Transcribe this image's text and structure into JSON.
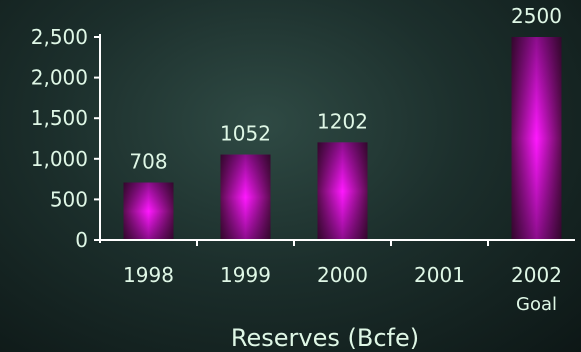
{
  "chart_data": {
    "type": "bar",
    "categories": [
      "1998",
      "1999",
      "2000",
      "2001",
      "2002"
    ],
    "category_sublabels": [
      "",
      "",
      "",
      "",
      "Goal"
    ],
    "values": [
      708,
      1052,
      1202,
      null,
      2500
    ],
    "data_labels": [
      "708",
      "1052",
      "1202",
      "",
      "2500"
    ],
    "xlabel": "Reserves (Bcfe)",
    "ylabel": "",
    "ylim": [
      0,
      2500
    ],
    "yticks": [
      0,
      500,
      1000,
      1500,
      2000,
      2500
    ],
    "ytick_labels": [
      "0",
      "500",
      "1,000",
      "1,500",
      "2,000",
      "2,500"
    ],
    "grid": false,
    "colors": {
      "bar": "#ff00ff",
      "bar_dark": "#5c0c50",
      "text": "#dff7e6",
      "axis": "#ffffff"
    }
  }
}
